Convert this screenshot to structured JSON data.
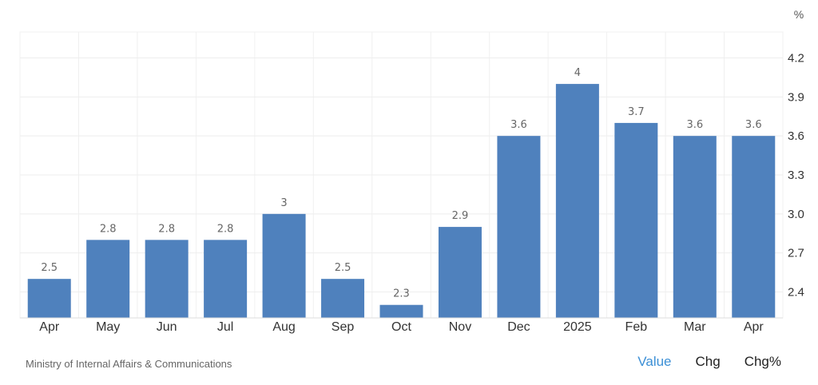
{
  "chart_data": {
    "type": "bar",
    "categories": [
      "Apr",
      "May",
      "Jun",
      "Jul",
      "Aug",
      "Sep",
      "Oct",
      "Nov",
      "Dec",
      "2025",
      "Feb",
      "Mar",
      "Apr"
    ],
    "values": [
      2.5,
      2.8,
      2.8,
      2.8,
      3,
      2.5,
      2.3,
      2.9,
      3.6,
      4,
      3.7,
      3.6,
      3.6
    ],
    "data_labels": [
      "2.5",
      "2.8",
      "2.8",
      "2.8",
      "3",
      "2.5",
      "2.3",
      "2.9",
      "3.6",
      "4",
      "3.7",
      "3.6",
      "3.6"
    ],
    "y_ticks": [
      "2.4",
      "2.7",
      "3.0",
      "3.3",
      "3.6",
      "3.9",
      "4.2"
    ],
    "y_tick_values": [
      2.4,
      2.7,
      3.0,
      3.3,
      3.6,
      3.9,
      4.2
    ],
    "ylim": [
      2.2,
      4.4
    ],
    "y_unit": "%",
    "y_axis_side": "right",
    "grid": true,
    "bar_color": "#4f81bd",
    "title": "",
    "xlabel": "",
    "ylabel": ""
  },
  "footer": {
    "source": "Ministry of Internal Affairs & Communications",
    "tabs": [
      {
        "label": "Value",
        "active": true
      },
      {
        "label": "Chg",
        "active": false
      },
      {
        "label": "Chg%",
        "active": false
      }
    ],
    "active_color": "#3b8fd6"
  }
}
